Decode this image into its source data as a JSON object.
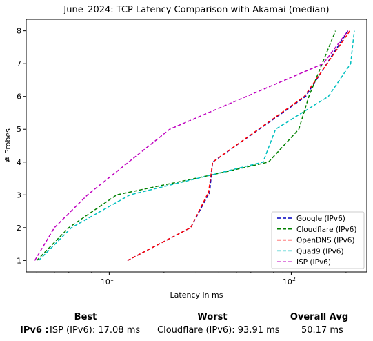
{
  "chart_data": {
    "type": "line",
    "title": "June_2024: TCP Latency Comparison with Akamai (median)",
    "xlabel": "Latency in ms",
    "ylabel": "# Probes",
    "x_scale": "log",
    "xlim": [
      3.5,
      260
    ],
    "ylim": [
      0.65,
      8.35
    ],
    "x_ticks": [
      {
        "value": 10,
        "base": "10",
        "exp": "1"
      },
      {
        "value": 100,
        "base": "10",
        "exp": "2"
      }
    ],
    "y_ticks": [
      1,
      2,
      3,
      4,
      5,
      6,
      7,
      8
    ],
    "grid": false,
    "legend_position": "lower-right",
    "series": [
      {
        "name": "Google (IPv6)",
        "color": "#0000bf",
        "x": [
          12.6,
          28,
          35,
          35.5,
          37,
          120,
          205
        ],
        "y": [
          1,
          2,
          3,
          3,
          4,
          6,
          8
        ]
      },
      {
        "name": "Cloudflare (IPv6)",
        "color": "#008000",
        "x": [
          4,
          6,
          11,
          36,
          75,
          110,
          125,
          175
        ],
        "y": [
          1,
          2,
          3,
          3.6,
          4,
          5,
          6,
          8
        ]
      },
      {
        "name": "OpenDNS (IPv6)",
        "color": "#ff0000",
        "x": [
          12.6,
          28,
          34.5,
          35,
          37,
          118,
          210
        ],
        "y": [
          1,
          2,
          3,
          3,
          4,
          6,
          8
        ]
      },
      {
        "name": "Quad9 (IPv6)",
        "color": "#00bfbf",
        "x": [
          4.1,
          6.2,
          13,
          36,
          70,
          82,
          160,
          212,
          222
        ],
        "y": [
          1,
          2,
          3,
          3.6,
          4,
          5,
          6,
          7,
          8
        ]
      },
      {
        "name": "ISP (IPv6)",
        "color": "#bf00bf",
        "x": [
          3.9,
          5,
          7.6,
          21.5,
          150,
          205
        ],
        "y": [
          1,
          2,
          3,
          5,
          7,
          8
        ]
      }
    ]
  },
  "summary": {
    "best_header": "Best",
    "worst_header": "Worst",
    "avg_header": "Overall Avg",
    "row_label": "IPv6 :",
    "best_value": "ISP (IPv6): 17.08 ms",
    "worst_value": "Cloudflare (IPv6): 93.91 ms",
    "avg_value": "50.17 ms"
  }
}
